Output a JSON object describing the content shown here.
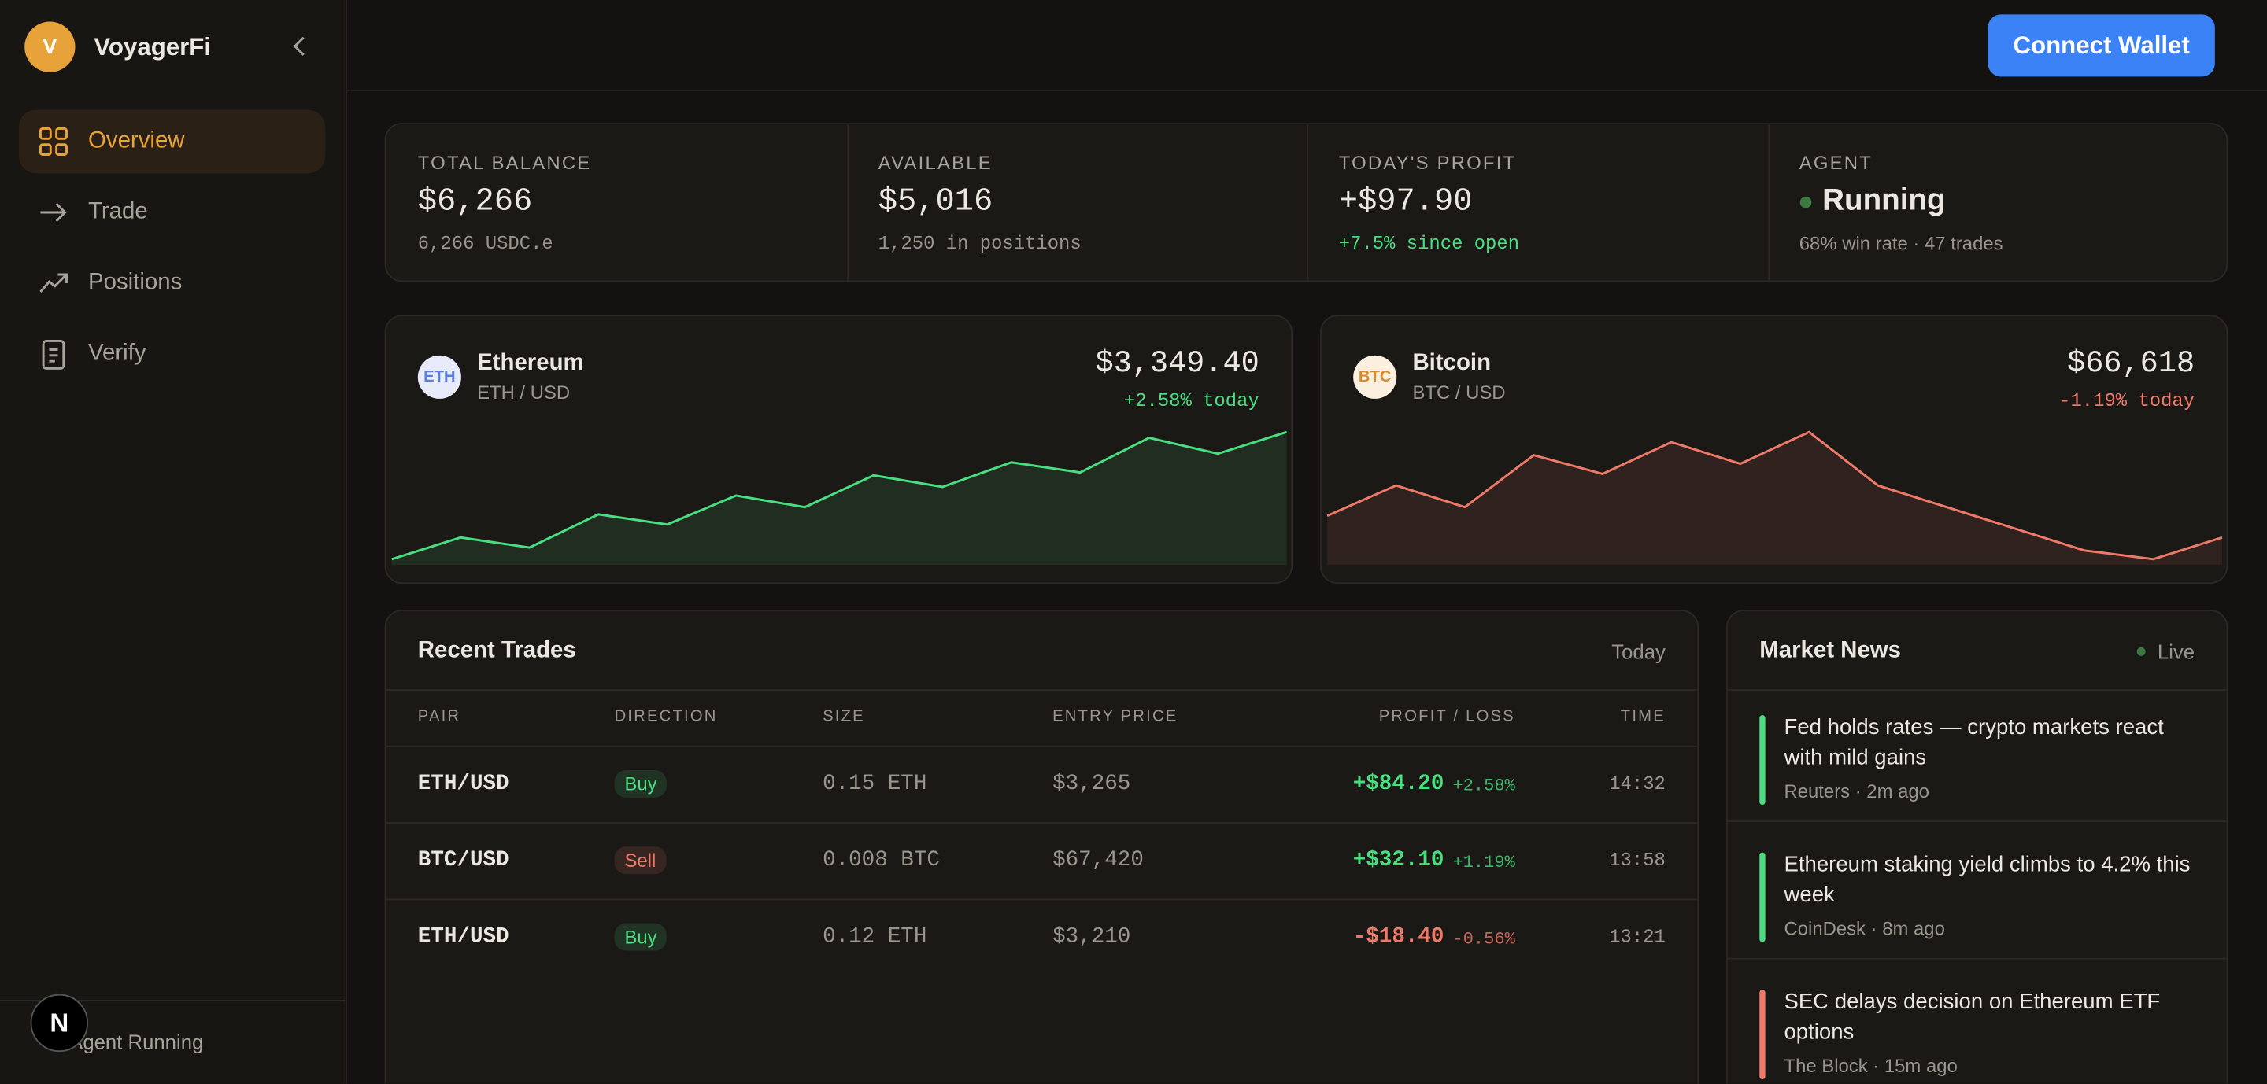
{
  "sidebar": {
    "brand_initial": "V",
    "brand": "VoyagerFi",
    "nav": [
      "Overview",
      "Trade",
      "Positions",
      "Verify"
    ],
    "status": "Agent Running",
    "badge": "N"
  },
  "header": {
    "button": "Connect Wallet"
  },
  "stats": [
    {
      "label": "TOTAL BALANCE",
      "value": "$6,266",
      "sub": "6,266 USDC.e",
      "sub_color": "#9a958d"
    },
    {
      "label": "AVAILABLE",
      "value": "$5,016",
      "sub": "1,250 in positions",
      "sub_color": "#9a958d"
    },
    {
      "label": "TODAY'S PROFIT",
      "value": "+$97.90",
      "sub": "+7.5% since open",
      "sub_color": "#4ade80"
    },
    {
      "label": "AGENT",
      "value": "Running",
      "sub": "68% win rate · 47 trades",
      "sub_color": "#9a958d"
    }
  ],
  "markets": [
    {
      "icon": "ETH",
      "name": "Ethereum",
      "pair": "ETH / USD",
      "price": "$3,349.40",
      "change": "+2.58% today",
      "color": "#4ade80",
      "icon_color": "#5b7fe0",
      "icon_bg": "#e8ecfa",
      "sparkline": [
        4,
        19,
        12,
        35,
        28,
        48,
        40,
        62,
        54,
        71,
        64,
        88,
        77,
        92
      ]
    },
    {
      "icon": "BTC",
      "name": "Bitcoin",
      "pair": "BTC / USD",
      "price": "$66,618",
      "change": "-1.19% today",
      "color": "#f07a6a",
      "icon_color": "#d98a2b",
      "icon_bg": "#fbf0e0",
      "sparkline": [
        34,
        55,
        40,
        76,
        63,
        85,
        70,
        92,
        55,
        40,
        25,
        10,
        4,
        19
      ]
    }
  ],
  "trades": {
    "title": "Recent Trades",
    "period": "Today",
    "columns": [
      "PAIR",
      "DIRECTION",
      "SIZE",
      "ENTRY PRICE",
      "PROFIT / LOSS",
      "TIME"
    ],
    "rows": [
      {
        "pair": "ETH/USD",
        "direction": "Buy",
        "direction_color": "#4ade80",
        "size": "0.15 ETH",
        "entry": "$3,265",
        "pnl": "+$84.20",
        "pnl_pct": "+2.58%",
        "pnl_color": "#4ade80",
        "time": "14:32"
      },
      {
        "pair": "BTC/USD",
        "direction": "Sell",
        "direction_color": "#f07a6a",
        "size": "0.008 BTC",
        "entry": "$67,420",
        "pnl": "+$32.10",
        "pnl_pct": "+1.19%",
        "pnl_color": "#4ade80",
        "time": "13:58"
      },
      {
        "pair": "ETH/USD",
        "direction": "Buy",
        "direction_color": "#4ade80",
        "size": "0.12 ETH",
        "entry": "$3,210",
        "pnl": "-$18.40",
        "pnl_pct": "-0.56%",
        "pnl_color": "#f07a6a",
        "time": "13:21"
      }
    ]
  },
  "news": {
    "title": "Market News",
    "status": "Live",
    "items": [
      {
        "headline": "Fed holds rates — crypto markets react with mild gains",
        "source": "Reuters · 2m ago",
        "color": "#4ade80"
      },
      {
        "headline": "Ethereum staking yield climbs to 4.2% this week",
        "source": "CoinDesk · 8m ago",
        "color": "#4ade80"
      },
      {
        "headline": "SEC delays decision on Ethereum ETF options",
        "source": "The Block · 15m ago",
        "color": "#f07a6a"
      }
    ]
  }
}
